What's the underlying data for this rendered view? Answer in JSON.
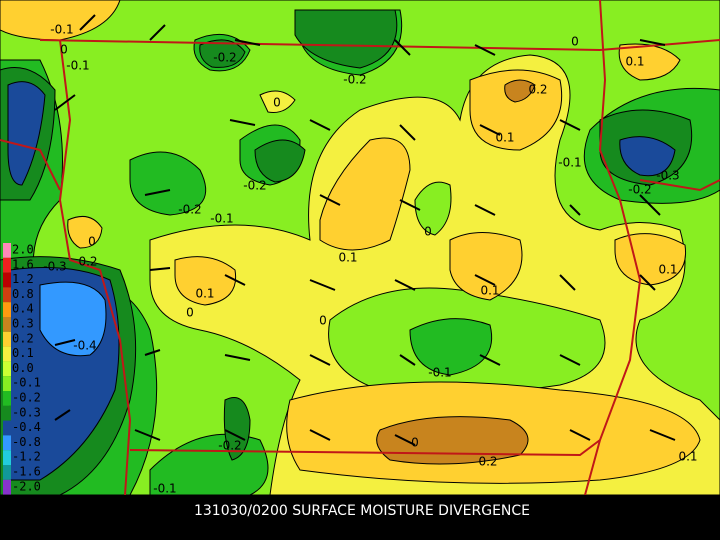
{
  "title": "131030/0200 SURFACE MOISTURE DIVERGENCE",
  "legend": [
    {
      "label": "2.0",
      "color": "#ff88bb"
    },
    {
      "label": "1.6",
      "color": "#ee2020"
    },
    {
      "label": "1.2",
      "color": "#bb0000"
    },
    {
      "label": "0.8",
      "color": "#d04010"
    },
    {
      "label": "0.4",
      "color": "#ff9a10"
    },
    {
      "label": "0.3",
      "color": "#c8841e"
    },
    {
      "label": "0.2",
      "color": "#ffd030"
    },
    {
      "label": "0.1",
      "color": "#f4f040"
    },
    {
      "label": "0.0",
      "color": "#ccff33"
    },
    {
      "label": "-0.1",
      "color": "#88ee22"
    },
    {
      "label": "-0.2",
      "color": "#22bb22"
    },
    {
      "label": "-0.3",
      "color": "#168a1e"
    },
    {
      "label": "-0.4",
      "color": "#1a4a9a"
    },
    {
      "label": "-0.8",
      "color": "#3399ff"
    },
    {
      "label": "-1.2",
      "color": "#22ccdd"
    },
    {
      "label": "-1.6",
      "color": "#119999"
    },
    {
      "label": "-2.0",
      "color": "#8833cc"
    }
  ],
  "contour_labels": [
    "-0.1",
    "0",
    "-0.1",
    "-0.2",
    "-0.2",
    "0.2",
    "0",
    "0.1",
    "0",
    "0.1",
    "-0.1",
    "-0.2",
    "-0.2",
    "-0.1",
    "-0.2",
    "-0.3",
    "0",
    "0.2",
    "-0.3",
    "0",
    "0.1",
    "0.1",
    "0.1",
    "0.1",
    "0",
    "0",
    "-0.4",
    "-0.1",
    "-0.2",
    "0",
    "0.2",
    "0.1",
    "-0.1"
  ]
}
